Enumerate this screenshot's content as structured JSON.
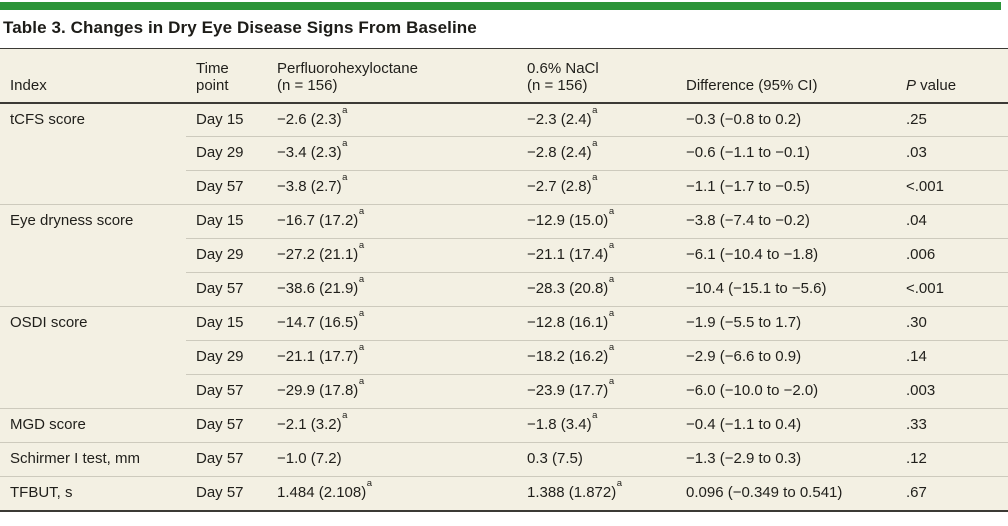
{
  "accent_color": "#2b9438",
  "title": "Table 3. Changes in Dry Eye Disease Signs From Baseline",
  "table": {
    "header": {
      "index": "Index",
      "time_line1": "Time",
      "time_line2": "point",
      "pfho_line1": "Perfluorohexyloctane",
      "pfho_line2": "(n = 156)",
      "nacl_line1": "0.6% NaCl",
      "nacl_line2": "(n = 156)",
      "diff": "Difference (95% CI)",
      "p_italic": "P",
      "p_rest": " value"
    },
    "rows": [
      {
        "index": {
          "text": "tCFS score"
        },
        "time": {
          "text": "Day 15"
        },
        "pfho": {
          "text": "−2.6 (2.3)",
          "sup": "a"
        },
        "nacl": {
          "text": "−2.3 (2.4)",
          "sup": "a"
        },
        "diff": {
          "text": "−0.3 (−0.8 to 0.2)"
        },
        "p": {
          "text": ".25"
        }
      },
      {
        "index": {
          "text": ""
        },
        "time": {
          "text": "Day 29"
        },
        "pfho": {
          "text": "−3.4 (2.3)",
          "sup": "a"
        },
        "nacl": {
          "text": "−2.8 (2.4)",
          "sup": "a"
        },
        "diff": {
          "text": "−0.6 (−1.1 to −0.1)"
        },
        "p": {
          "text": ".03"
        }
      },
      {
        "index": {
          "text": ""
        },
        "time": {
          "text": "Day 57"
        },
        "pfho": {
          "text": "−3.8 (2.7)",
          "sup": "a"
        },
        "nacl": {
          "text": "−2.7 (2.8)",
          "sup": "a"
        },
        "diff": {
          "text": "−1.1 (−1.7 to −0.5)"
        },
        "p": {
          "text": "<.001"
        }
      },
      {
        "index": {
          "text": "Eye dryness score"
        },
        "time": {
          "text": "Day 15"
        },
        "pfho": {
          "text": "−16.7 (17.2)",
          "sup": "a"
        },
        "nacl": {
          "text": "−12.9 (15.0)",
          "sup": "a"
        },
        "diff": {
          "text": "−3.8 (−7.4 to −0.2)"
        },
        "p": {
          "text": ".04"
        }
      },
      {
        "index": {
          "text": ""
        },
        "time": {
          "text": "Day 29"
        },
        "pfho": {
          "text": "−27.2 (21.1)",
          "sup": "a"
        },
        "nacl": {
          "text": "−21.1 (17.4)",
          "sup": "a"
        },
        "diff": {
          "text": "−6.1 (−10.4 to −1.8)"
        },
        "p": {
          "text": ".006"
        }
      },
      {
        "index": {
          "text": ""
        },
        "time": {
          "text": "Day 57"
        },
        "pfho": {
          "text": "−38.6 (21.9)",
          "sup": "a"
        },
        "nacl": {
          "text": "−28.3 (20.8)",
          "sup": "a"
        },
        "diff": {
          "text": "−10.4 (−15.1 to −5.6)"
        },
        "p": {
          "text": "<.001"
        }
      },
      {
        "index": {
          "text": "OSDI score"
        },
        "time": {
          "text": "Day 15"
        },
        "pfho": {
          "text": "−14.7 (16.5)",
          "sup": "a"
        },
        "nacl": {
          "text": "−12.8 (16.1)",
          "sup": "a"
        },
        "diff": {
          "text": "−1.9 (−5.5 to 1.7)"
        },
        "p": {
          "text": ".30"
        }
      },
      {
        "index": {
          "text": ""
        },
        "time": {
          "text": "Day 29"
        },
        "pfho": {
          "text": "−21.1 (17.7)",
          "sup": "a"
        },
        "nacl": {
          "text": "−18.2 (16.2)",
          "sup": "a"
        },
        "diff": {
          "text": "−2.9 (−6.6 to 0.9)"
        },
        "p": {
          "text": ".14"
        }
      },
      {
        "index": {
          "text": ""
        },
        "time": {
          "text": "Day 57"
        },
        "pfho": {
          "text": "−29.9 (17.8)",
          "sup": "a"
        },
        "nacl": {
          "text": "−23.9 (17.7)",
          "sup": "a"
        },
        "diff": {
          "text": "−6.0 (−10.0 to −2.0)"
        },
        "p": {
          "text": ".003"
        }
      },
      {
        "index": {
          "text": "MGD score"
        },
        "time": {
          "text": "Day 57"
        },
        "pfho": {
          "text": "−2.1 (3.2)",
          "sup": "a"
        },
        "nacl": {
          "text": "−1.8 (3.4)",
          "sup": "a"
        },
        "diff": {
          "text": "−0.4 (−1.1 to 0.4)"
        },
        "p": {
          "text": ".33"
        }
      },
      {
        "index": {
          "text": "Schirmer I test, mm"
        },
        "time": {
          "text": "Day 57"
        },
        "pfho": {
          "text": "−1.0 (7.2)"
        },
        "nacl": {
          "text": "0.3 (7.5)"
        },
        "diff": {
          "text": "−1.3 (−2.9 to 0.3)"
        },
        "p": {
          "text": ".12"
        }
      },
      {
        "index": {
          "text": "TFBUT, s"
        },
        "time": {
          "text": "Day 57"
        },
        "pfho": {
          "text": "1.484 (2.108)",
          "sup": "a"
        },
        "nacl": {
          "text": "1.388 (1.872)",
          "sup": "a"
        },
        "diff": {
          "text": "0.096 (−0.349 to 0.541)"
        },
        "p": {
          "text": ".67"
        }
      }
    ]
  }
}
